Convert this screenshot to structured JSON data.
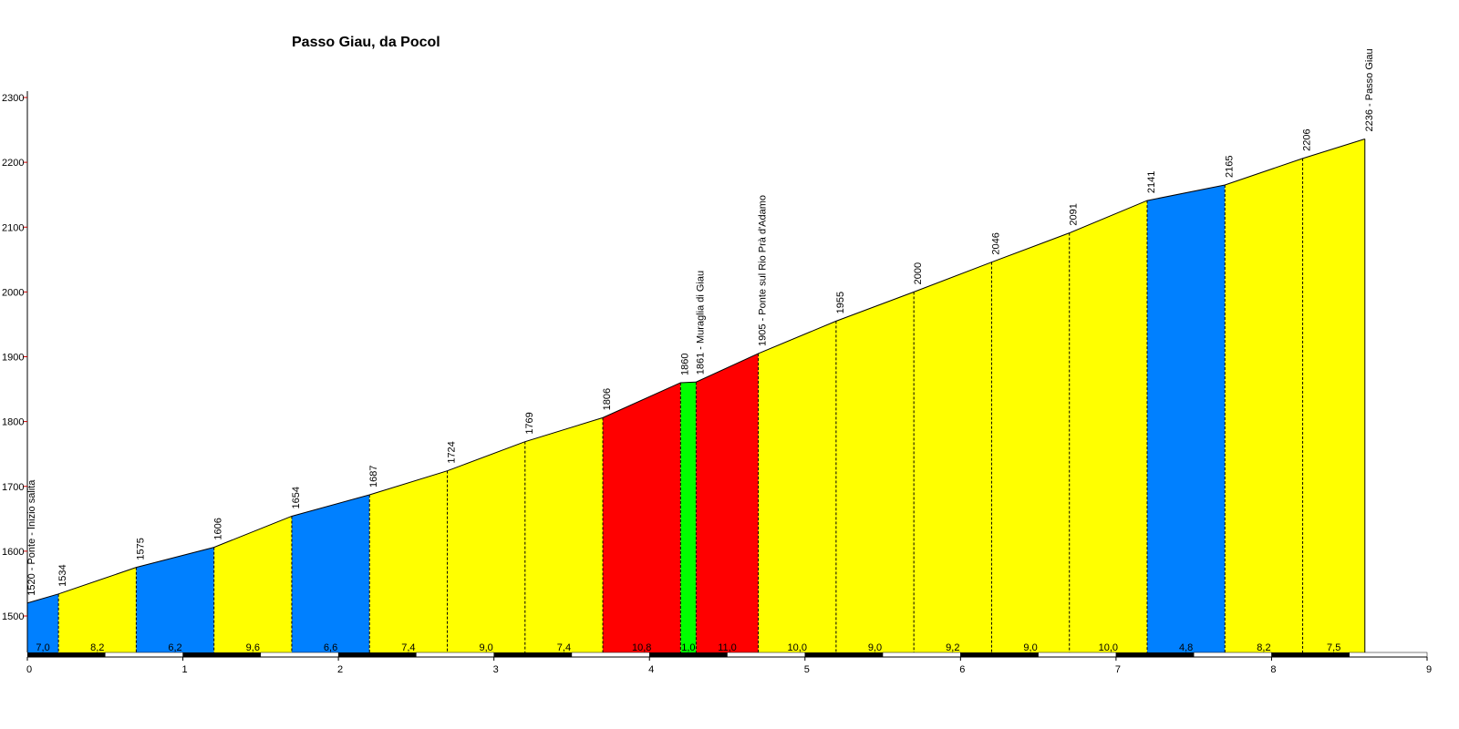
{
  "chart_data": {
    "type": "area",
    "title": "Passo Giau, da Pocol",
    "xlabel": "",
    "ylabel": "",
    "xlim": [
      0,
      9
    ],
    "ylim": [
      1440,
      2300
    ],
    "x_ticks": [
      "0",
      "1",
      "2",
      "3",
      "4",
      "5",
      "6",
      "7",
      "8",
      "9"
    ],
    "y_ticks": [
      "1500",
      "1600",
      "1700",
      "1800",
      "1900",
      "2000",
      "2100",
      "2200",
      "2300"
    ],
    "points": [
      {
        "x": 0.0,
        "y": 1520,
        "label": "1520 - Ponte - Inizio salita"
      },
      {
        "x": 0.2,
        "y": 1534,
        "label": "1534"
      },
      {
        "x": 0.7,
        "y": 1575,
        "label": "1575"
      },
      {
        "x": 1.2,
        "y": 1606,
        "label": "1606"
      },
      {
        "x": 1.7,
        "y": 1654,
        "label": "1654"
      },
      {
        "x": 2.2,
        "y": 1687,
        "label": "1687"
      },
      {
        "x": 2.7,
        "y": 1724,
        "label": "1724"
      },
      {
        "x": 3.2,
        "y": 1769,
        "label": "1769"
      },
      {
        "x": 3.7,
        "y": 1806,
        "label": "1806"
      },
      {
        "x": 4.2,
        "y": 1860,
        "label": "1860"
      },
      {
        "x": 4.3,
        "y": 1861,
        "label": "1861 - Muraglia di Giau"
      },
      {
        "x": 4.7,
        "y": 1905,
        "label": "1905 - Ponte sul Rio Prà d'Adamo"
      },
      {
        "x": 5.2,
        "y": 1955,
        "label": "1955"
      },
      {
        "x": 5.7,
        "y": 2000,
        "label": "2000"
      },
      {
        "x": 6.2,
        "y": 2046,
        "label": "2046"
      },
      {
        "x": 6.7,
        "y": 2091,
        "label": "2091"
      },
      {
        "x": 7.2,
        "y": 2141,
        "label": "2141"
      },
      {
        "x": 7.7,
        "y": 2165,
        "label": "2165"
      },
      {
        "x": 8.2,
        "y": 2206,
        "label": "2206"
      },
      {
        "x": 8.6,
        "y": 2236,
        "label": "2236 - Passo Giau"
      }
    ],
    "segments": [
      {
        "grade": "7,0",
        "color": "#0080ff"
      },
      {
        "grade": "8,2",
        "color": "#ffff00"
      },
      {
        "grade": "6,2",
        "color": "#0080ff"
      },
      {
        "grade": "9,6",
        "color": "#ffff00"
      },
      {
        "grade": "6,6",
        "color": "#0080ff"
      },
      {
        "grade": "7,4",
        "color": "#ffff00"
      },
      {
        "grade": "9,0",
        "color": "#ffff00"
      },
      {
        "grade": "7,4",
        "color": "#ffff00"
      },
      {
        "grade": "10,8",
        "color": "#ff0000"
      },
      {
        "grade": "1,0",
        "color": "#00ff00"
      },
      {
        "grade": "11,0",
        "color": "#ff0000"
      },
      {
        "grade": "10,0",
        "color": "#ffff00"
      },
      {
        "grade": "9,0",
        "color": "#ffff00"
      },
      {
        "grade": "9,2",
        "color": "#ffff00"
      },
      {
        "grade": "9,0",
        "color": "#ffff00"
      },
      {
        "grade": "10,0",
        "color": "#ffff00"
      },
      {
        "grade": "4,8",
        "color": "#0080ff"
      },
      {
        "grade": "8,2",
        "color": "#ffff00"
      },
      {
        "grade": "7,5",
        "color": "#ffff00"
      }
    ],
    "grid": false,
    "legend": "none"
  }
}
